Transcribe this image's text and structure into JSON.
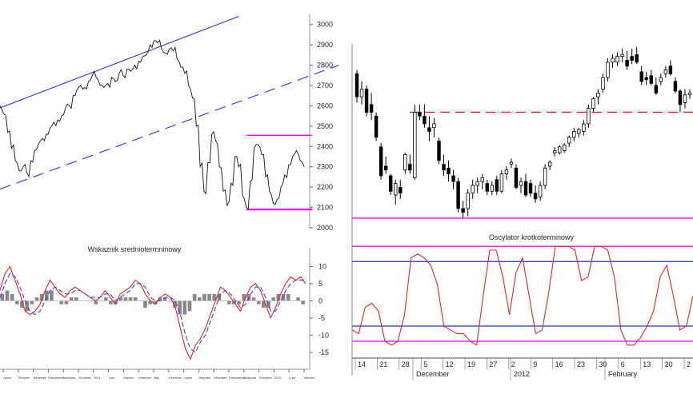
{
  "chart_data": [
    {
      "id": "left_price",
      "type": "line",
      "title": "",
      "ylim": [
        2000,
        3050
      ],
      "y_ticks": [
        "3000",
        "2900",
        "2800",
        "2700",
        "2600",
        "2500",
        "2400",
        "2300",
        "2200",
        "2100",
        "2000"
      ],
      "y_tick_values": [
        3000,
        2900,
        2800,
        2700,
        2600,
        2500,
        2400,
        2300,
        2200,
        2100,
        2000
      ],
      "series": [
        {
          "values": [
            2600,
            2560,
            2470,
            2390,
            2330,
            2280,
            2300,
            2270,
            2330,
            2380,
            2410,
            2440,
            2460,
            2490,
            2520,
            2530,
            2550,
            2590,
            2600,
            2650,
            2680,
            2700,
            2690,
            2720,
            2750,
            2740,
            2700,
            2690,
            2710,
            2740,
            2720,
            2760,
            2750,
            2780,
            2770,
            2800,
            2820,
            2840,
            2850,
            2900,
            2920,
            2910,
            2880,
            2860,
            2880,
            2870,
            2830,
            2790,
            2760,
            2700,
            2640,
            2500,
            2300,
            2180,
            2320,
            2460,
            2430,
            2300,
            2180,
            2110,
            2220,
            2350,
            2300,
            2160,
            2100,
            2230,
            2390,
            2410,
            2360,
            2250,
            2180,
            2120,
            2140,
            2200,
            2260,
            2310,
            2350,
            2380,
            2330,
            2300
          ]
        }
      ],
      "trend_lines": [
        {
          "kind": "solid",
          "color": "#3344ee",
          "from": [
            0,
            2590
          ],
          "to": [
            62,
            3040
          ]
        },
        {
          "kind": "dashed",
          "color": "#3344ee",
          "from": [
            0,
            2190
          ],
          "to": [
            88,
            2800
          ]
        }
      ],
      "horizontal_levels": [
        {
          "y": 2455,
          "color": "#ff00ff",
          "from_x": 62
        },
        {
          "y": 2092,
          "color": "#ff00ff",
          "from_x": 62
        },
        {
          "y": 2088,
          "color": "#ff00ff",
          "from_x": 62
        }
      ]
    },
    {
      "id": "left_indicator",
      "type": "line",
      "title": "Wskaznik sredniotermninowy",
      "ylim": [
        -19,
        15
      ],
      "y_ticks": [
        "10",
        "5",
        "0",
        "-5",
        "-10",
        "-15"
      ],
      "y_tick_values": [
        10,
        5,
        0,
        -5,
        -10,
        -15
      ],
      "series": [
        {
          "color": "#ee2222",
          "values": [
            3,
            8,
            10,
            6,
            2,
            -3,
            -4,
            -3,
            -1,
            3,
            6,
            4,
            2,
            1,
            3,
            4,
            3,
            2,
            1,
            0,
            1,
            3,
            1,
            -1,
            2,
            3,
            4,
            6,
            5,
            2,
            0,
            -1,
            1,
            2,
            1,
            -2,
            -8,
            -14,
            -17,
            -13,
            -11,
            -8,
            -4,
            0,
            4,
            3,
            1,
            -1,
            -3,
            1,
            4,
            5,
            3,
            -1,
            -5,
            -2,
            2,
            5,
            7,
            6,
            7,
            5
          ]
        },
        {
          "color": "#3344ee",
          "dashed": true,
          "values": [
            1,
            5,
            8,
            7,
            4,
            0,
            -3,
            -4,
            -3,
            0,
            3,
            4,
            3,
            2,
            2,
            3,
            3,
            2,
            1,
            1,
            1,
            2,
            2,
            0,
            1,
            2,
            3,
            5,
            5,
            4,
            1,
            0,
            0,
            1,
            1,
            0,
            -4,
            -10,
            -14,
            -15,
            -12,
            -10,
            -6,
            -2,
            2,
            3,
            2,
            0,
            -2,
            -1,
            2,
            4,
            4,
            1,
            -3,
            -3,
            0,
            3,
            5,
            6,
            6,
            6
          ]
        }
      ],
      "histogram": [
        2,
        3,
        2,
        -1,
        -2,
        -3,
        -1,
        1,
        2,
        3,
        3,
        0,
        -1,
        -1,
        1,
        1,
        0,
        0,
        0,
        -1,
        0,
        1,
        -1,
        -1,
        1,
        1,
        1,
        1,
        0,
        -2,
        -1,
        -1,
        1,
        1,
        0,
        -2,
        -4,
        -4,
        -3,
        2,
        1,
        2,
        2,
        2,
        2,
        0,
        -1,
        -1,
        -1,
        2,
        2,
        1,
        -1,
        -2,
        -2,
        1,
        2,
        2,
        2,
        0,
        1,
        -1
      ],
      "x_ticks": [
        "Lipiec",
        "Sierpien",
        "Wrzesien",
        "Pazdziernik",
        "Listopad",
        "Grudzien",
        "2011",
        "Luty",
        "Marzec",
        "Kwiecien",
        "Maj",
        "Czerwiec",
        "Lipiec",
        "Sierpien",
        "Wrzesien",
        "Pazdziernik",
        "Listopad",
        "Grudzien",
        "2012",
        "Luty",
        "Marzec"
      ]
    },
    {
      "id": "right_candles",
      "type": "candlestick",
      "title": "",
      "ylim": [
        2000,
        3100
      ],
      "resistance_dashed": {
        "y": 2600,
        "color": "#ee2222"
      },
      "support_level": {
        "y": 2050,
        "color": "#ff00ff"
      },
      "candles": [
        {
          "o": 2800,
          "h": 2820,
          "l": 2650,
          "c": 2680
        },
        {
          "o": 2680,
          "h": 2760,
          "l": 2640,
          "c": 2720
        },
        {
          "o": 2720,
          "h": 2740,
          "l": 2580,
          "c": 2600
        },
        {
          "o": 2640,
          "h": 2700,
          "l": 2560,
          "c": 2600
        },
        {
          "o": 2580,
          "h": 2600,
          "l": 2450,
          "c": 2470
        },
        {
          "o": 2420,
          "h": 2440,
          "l": 2250,
          "c": 2270
        },
        {
          "o": 2320,
          "h": 2370,
          "l": 2280,
          "c": 2300
        },
        {
          "o": 2270,
          "h": 2280,
          "l": 2170,
          "c": 2190
        },
        {
          "o": 2170,
          "h": 2250,
          "l": 2120,
          "c": 2230
        },
        {
          "o": 2210,
          "h": 2250,
          "l": 2150,
          "c": 2180
        },
        {
          "o": 2300,
          "h": 2390,
          "l": 2280,
          "c": 2380
        },
        {
          "o": 2330,
          "h": 2380,
          "l": 2280,
          "c": 2300
        },
        {
          "o": 2260,
          "h": 2640,
          "l": 2250,
          "c": 2600
        },
        {
          "o": 2600,
          "h": 2640,
          "l": 2560,
          "c": 2580
        },
        {
          "o": 2580,
          "h": 2640,
          "l": 2520,
          "c": 2540
        },
        {
          "o": 2520,
          "h": 2580,
          "l": 2450,
          "c": 2500
        },
        {
          "o": 2520,
          "h": 2570,
          "l": 2470,
          "c": 2540
        },
        {
          "o": 2450,
          "h": 2470,
          "l": 2330,
          "c": 2350
        },
        {
          "o": 2330,
          "h": 2380,
          "l": 2270,
          "c": 2300
        },
        {
          "o": 2310,
          "h": 2350,
          "l": 2240,
          "c": 2280
        },
        {
          "o": 2270,
          "h": 2300,
          "l": 2200,
          "c": 2240
        },
        {
          "o": 2240,
          "h": 2260,
          "l": 2080,
          "c": 2100
        },
        {
          "o": 2100,
          "h": 2140,
          "l": 2050,
          "c": 2080
        },
        {
          "o": 2100,
          "h": 2200,
          "l": 2060,
          "c": 2180
        },
        {
          "o": 2180,
          "h": 2250,
          "l": 2150,
          "c": 2220
        },
        {
          "o": 2220,
          "h": 2260,
          "l": 2180,
          "c": 2240
        },
        {
          "o": 2240,
          "h": 2280,
          "l": 2200,
          "c": 2260
        },
        {
          "o": 2230,
          "h": 2250,
          "l": 2170,
          "c": 2190
        },
        {
          "o": 2190,
          "h": 2240,
          "l": 2170,
          "c": 2220
        },
        {
          "o": 2250,
          "h": 2270,
          "l": 2170,
          "c": 2190
        },
        {
          "o": 2190,
          "h": 2300,
          "l": 2180,
          "c": 2280
        },
        {
          "o": 2280,
          "h": 2320,
          "l": 2250,
          "c": 2300
        },
        {
          "o": 2330,
          "h": 2360,
          "l": 2310,
          "c": 2340
        },
        {
          "o": 2310,
          "h": 2330,
          "l": 2200,
          "c": 2210
        },
        {
          "o": 2220,
          "h": 2260,
          "l": 2180,
          "c": 2240
        },
        {
          "o": 2240,
          "h": 2280,
          "l": 2160,
          "c": 2170
        },
        {
          "o": 2230,
          "h": 2250,
          "l": 2160,
          "c": 2180
        },
        {
          "o": 2180,
          "h": 2220,
          "l": 2130,
          "c": 2150
        },
        {
          "o": 2160,
          "h": 2240,
          "l": 2140,
          "c": 2220
        },
        {
          "o": 2220,
          "h": 2330,
          "l": 2200,
          "c": 2310
        },
        {
          "o": 2320,
          "h": 2350,
          "l": 2300,
          "c": 2340
        },
        {
          "o": 2390,
          "h": 2420,
          "l": 2370,
          "c": 2400
        },
        {
          "o": 2390,
          "h": 2430,
          "l": 2380,
          "c": 2420
        },
        {
          "o": 2400,
          "h": 2440,
          "l": 2390,
          "c": 2430
        },
        {
          "o": 2440,
          "h": 2480,
          "l": 2420,
          "c": 2470
        },
        {
          "o": 2470,
          "h": 2520,
          "l": 2450,
          "c": 2500
        },
        {
          "o": 2490,
          "h": 2520,
          "l": 2470,
          "c": 2510
        },
        {
          "o": 2500,
          "h": 2560,
          "l": 2480,
          "c": 2540
        },
        {
          "o": 2540,
          "h": 2640,
          "l": 2520,
          "c": 2620
        },
        {
          "o": 2620,
          "h": 2680,
          "l": 2600,
          "c": 2670
        },
        {
          "o": 2680,
          "h": 2720,
          "l": 2640,
          "c": 2700
        },
        {
          "o": 2720,
          "h": 2800,
          "l": 2700,
          "c": 2780
        },
        {
          "o": 2780,
          "h": 2880,
          "l": 2760,
          "c": 2860
        },
        {
          "o": 2860,
          "h": 2900,
          "l": 2830,
          "c": 2880
        },
        {
          "o": 2860,
          "h": 2910,
          "l": 2840,
          "c": 2890
        },
        {
          "o": 2890,
          "h": 2930,
          "l": 2860,
          "c": 2900
        },
        {
          "o": 2870,
          "h": 2920,
          "l": 2820,
          "c": 2840
        },
        {
          "o": 2890,
          "h": 2930,
          "l": 2850,
          "c": 2870
        },
        {
          "o": 2900,
          "h": 2940,
          "l": 2850,
          "c": 2860
        },
        {
          "o": 2810,
          "h": 2840,
          "l": 2740,
          "c": 2760
        },
        {
          "o": 2780,
          "h": 2810,
          "l": 2740,
          "c": 2770
        },
        {
          "o": 2790,
          "h": 2820,
          "l": 2740,
          "c": 2750
        },
        {
          "o": 2740,
          "h": 2780,
          "l": 2690,
          "c": 2700
        },
        {
          "o": 2760,
          "h": 2800,
          "l": 2740,
          "c": 2780
        },
        {
          "o": 2800,
          "h": 2840,
          "l": 2780,
          "c": 2820
        },
        {
          "o": 2840,
          "h": 2870,
          "l": 2790,
          "c": 2800
        },
        {
          "o": 2760,
          "h": 2780,
          "l": 2700,
          "c": 2710
        },
        {
          "o": 2710,
          "h": 2720,
          "l": 2600,
          "c": 2640
        },
        {
          "o": 2650,
          "h": 2720,
          "l": 2620,
          "c": 2690
        },
        {
          "o": 2690,
          "h": 2720,
          "l": 2670,
          "c": 2700
        }
      ],
      "x_ticks": [
        "14",
        "21",
        "28",
        "5",
        "12",
        "19",
        "27",
        "2",
        "9",
        "16",
        "23",
        "30",
        "6",
        "13",
        "20",
        "2"
      ],
      "x_groups": [
        "December",
        "2012",
        "February"
      ]
    },
    {
      "id": "right_oscillator",
      "type": "line",
      "title": "Oscylator krotkoterminowy",
      "ylim": [
        -16,
        16
      ],
      "series": [
        {
          "color": "#ee2222",
          "values": [
            -9,
            -10,
            -3,
            -2,
            -4,
            -12,
            -13,
            -12,
            -5,
            10,
            11,
            10,
            8,
            3,
            -8,
            -9,
            -10,
            -10,
            -12,
            -13,
            0,
            12,
            12,
            5,
            -5,
            6,
            10,
            0,
            -10,
            -9,
            1,
            13,
            13,
            13,
            12,
            4,
            5,
            13,
            13,
            12,
            5,
            -9,
            -13,
            -13,
            -11,
            -8,
            -4,
            5,
            8,
            0,
            -9,
            -8,
            0
          ]
        }
      ],
      "levels": [
        {
          "y": 13,
          "color": "#ff00ff"
        },
        {
          "y": 9,
          "color": "#2233cc"
        },
        {
          "y": -8,
          "color": "#2233cc"
        },
        {
          "y": -12,
          "color": "#ff00ff"
        }
      ]
    }
  ]
}
